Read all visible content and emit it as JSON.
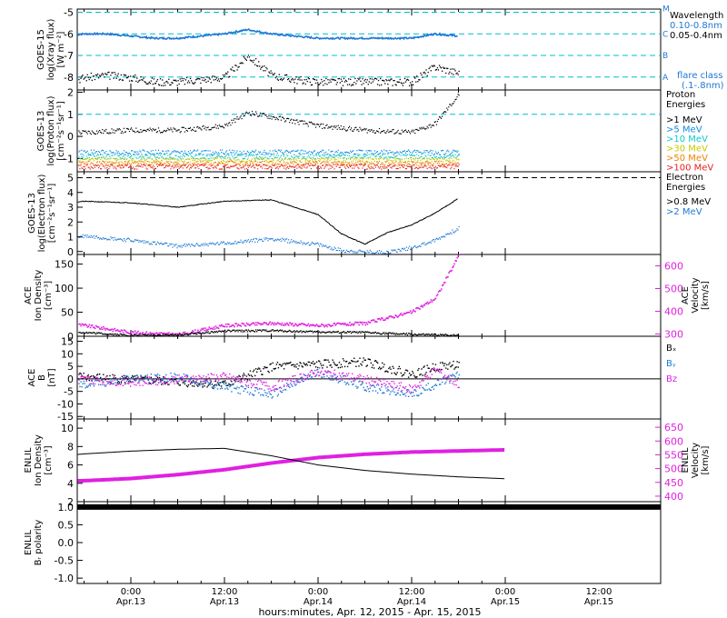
{
  "figure": {
    "xlabel": "hours:minutes, Apr. 12, 2015 - Apr. 15, 2015",
    "x_ticks": [
      {
        "time": "0:00",
        "date": "Apr.13"
      },
      {
        "time": "12:00",
        "date": "Apr.13"
      },
      {
        "time": "0:00",
        "date": "Apr.14"
      },
      {
        "time": "12:00",
        "date": "Apr.14"
      },
      {
        "time": "0:00",
        "date": "Apr.15"
      },
      {
        "time": "12:00",
        "date": "Apr.15"
      }
    ]
  },
  "colors": {
    "black": "#000000",
    "xray_blue": "#1f77d4",
    "cyan_ref": "#00bcd4",
    "magenta": "#e020e0",
    "p1": "#000000",
    "p5": "#0c8ce0",
    "p10": "#10c8c8",
    "p30": "#c8c800",
    "p50": "#f08000",
    "p100": "#e82020"
  },
  "panels": {
    "xray": {
      "ylabel": [
        "GOES-15",
        "log(Xray flux)",
        "[W m⁻²]"
      ],
      "yticks": [
        "-5",
        "-6",
        "-7",
        "-8"
      ],
      "flare_letters": [
        "M",
        "C",
        "B",
        "A"
      ],
      "legend_title": "Wavelength",
      "legend_items": [
        "0.10-0.8nm",
        "0.05-0.4nm"
      ],
      "flare_class_title": "flare class",
      "flare_class_range": "(.1-.8nm)"
    },
    "proton": {
      "ylabel": [
        "GOES-13",
        "log(Proton flux)",
        "[cm⁻²s⁻¹sr⁻¹]"
      ],
      "yticks": [
        "2",
        "1",
        "0",
        "-1"
      ],
      "legend_title": "Proton",
      "legend_title2": "Energies",
      "legend_items": [
        ">1 MeV",
        ">5 MeV",
        ">10 MeV",
        ">30 MeV",
        ">50 MeV",
        ">100 MeV"
      ]
    },
    "electron": {
      "ylabel": [
        "GOES-13",
        "log(Electron flux)",
        "[cm⁻²s⁻¹sr⁻¹]"
      ],
      "yticks": [
        "5",
        "4",
        "3",
        "2",
        "1",
        "0"
      ],
      "legend_title": "Electron",
      "legend_title2": "Energies",
      "legend_items": [
        ">0.8 MeV",
        ">2 MeV"
      ]
    },
    "ace_density": {
      "ylabel": [
        "ACE",
        "Ion Density",
        "[cm⁻³]"
      ],
      "yticks": [
        "150",
        "100",
        "50",
        "0"
      ],
      "ylabel_right": [
        "ACE",
        "Velocity",
        "[km/s]"
      ],
      "yticks_right": [
        "600",
        "500",
        "400",
        "300"
      ]
    },
    "ace_mag": {
      "ylabel": [
        "ACE",
        "B",
        "[nT]"
      ],
      "yticks": [
        "15",
        "10",
        "5",
        "0",
        "-5",
        "-10",
        "-15"
      ],
      "legend_items": [
        "Bₓ",
        "Bᵧ",
        "Bz"
      ]
    },
    "enlil": {
      "ylabel": [
        "ENLIL",
        "Ion Density",
        "[cm⁻³]"
      ],
      "yticks": [
        "10",
        "8",
        "6",
        "4",
        "2"
      ],
      "ylabel_right": [
        "ENLIL",
        "Velocity",
        "[km/s]"
      ],
      "yticks_right": [
        "650",
        "600",
        "550",
        "500",
        "450",
        "400"
      ]
    },
    "polarity": {
      "ylabel": [
        "ENLIL",
        "Bᵣ polarity"
      ],
      "yticks": [
        "1.0",
        "0.5",
        "0.0",
        "-0.5",
        "-1.0"
      ]
    }
  },
  "chart_data": {
    "type": "line",
    "x_unit": "hours since 2015-04-12 00:00",
    "xlim": [
      0,
      72
    ],
    "xlim_note": "Apr. 12, 2015 - Apr. 15, 2015",
    "xray": {
      "ylim": [
        -8.6,
        -4.85
      ],
      "hours": [
        0,
        3,
        6,
        9,
        12,
        15,
        18,
        21,
        24,
        27,
        30,
        33,
        36,
        39,
        42,
        45,
        48,
        51,
        54,
        57,
        60,
        63,
        66
      ],
      "long": [
        -7.7,
        -7.5,
        -7.0,
        -7.8,
        -8.2,
        -8.3,
        -8.0,
        -7.9,
        -8.0,
        -8.2,
        -8.2,
        -8.1,
        -8.0,
        -7.0,
        -7.9,
        -8.1,
        -8.2,
        -8.2,
        -8.2,
        -8.2,
        -8.2,
        -7.5,
        -7.8
      ],
      "short": [
        -6.1,
        -6.1,
        -5.5,
        -6.0,
        -6.2,
        -6.1,
        -6.0,
        -6.0,
        -6.1,
        -6.2,
        -6.2,
        -6.1,
        -6.0,
        -5.8,
        -6.0,
        -6.1,
        -6.2,
        -6.2,
        -6.2,
        -6.2,
        -6.2,
        -6.0,
        -6.1
      ]
    },
    "proton": {
      "ylim": [
        -1.6,
        2.1
      ],
      "hours": [
        0,
        6,
        12,
        18,
        24,
        30,
        36,
        39,
        42,
        48,
        54,
        60,
        63,
        66
      ],
      "series": [
        {
          "name": ">1 MeV",
          "values": [
            0.0,
            0.1,
            0.2,
            0.2,
            0.3,
            0.3,
            0.5,
            1.1,
            0.9,
            0.5,
            0.3,
            0.2,
            0.6,
            1.9
          ]
        },
        {
          "name": ">5 MeV",
          "values": [
            -0.7,
            -0.7,
            -0.7,
            -0.7,
            -0.7,
            -0.7,
            -0.7,
            -0.7,
            -0.7,
            -0.7,
            -0.7,
            -0.7,
            -0.7,
            -0.7
          ]
        },
        {
          "name": ">10 MeV",
          "values": [
            -0.9,
            -0.9,
            -0.9,
            -0.9,
            -0.9,
            -0.9,
            -0.9,
            -0.9,
            -0.9,
            -0.9,
            -0.9,
            -0.9,
            -0.9,
            -0.9
          ]
        },
        {
          "name": ">30 MeV",
          "values": [
            -1.05,
            -1.05,
            -1.05,
            -1.05,
            -1.05,
            -1.05,
            -1.05,
            -1.05,
            -1.05,
            -1.05,
            -1.05,
            -1.05,
            -1.05,
            -1.05
          ]
        },
        {
          "name": ">50 MeV",
          "values": [
            -1.2,
            -1.2,
            -1.2,
            -1.2,
            -1.2,
            -1.2,
            -1.2,
            -1.2,
            -1.2,
            -1.2,
            -1.2,
            -1.2,
            -1.2,
            -1.2
          ]
        },
        {
          "name": ">100 MeV",
          "values": [
            -1.35,
            -1.35,
            -1.35,
            -1.35,
            -1.35,
            -1.35,
            -1.35,
            -1.35,
            -1.35,
            -1.35,
            -1.35,
            -1.35,
            -1.35,
            -1.35
          ]
        }
      ],
      "reference_level": 1
    },
    "electron": {
      "ylim": [
        -0.2,
        5.4
      ],
      "hours": [
        0,
        6,
        12,
        18,
        24,
        30,
        36,
        42,
        48,
        51,
        54,
        57,
        60,
        63,
        66
      ],
      "series": [
        {
          "name": ">0.8 MeV",
          "values": [
            3.7,
            3.4,
            3.1,
            3.4,
            3.3,
            3.0,
            3.4,
            3.5,
            2.5,
            1.2,
            0.5,
            1.3,
            1.8,
            2.6,
            3.6
          ]
        },
        {
          "name": ">2 MeV",
          "values": [
            1.4,
            1.1,
            0.4,
            1.1,
            0.8,
            0.4,
            0.6,
            0.9,
            0.5,
            0.1,
            0.0,
            0.0,
            0.3,
            0.8,
            1.6
          ]
        }
      ],
      "reference_level": 5
    },
    "ace_density": {
      "ylim": [
        0,
        170
      ],
      "ylim_right": [
        290,
        650
      ],
      "hours": [
        0,
        6,
        12,
        18,
        24,
        30,
        36,
        42,
        48,
        54,
        60,
        63,
        66
      ],
      "density": [
        6,
        11,
        14,
        9,
        3,
        4,
        12,
        13,
        10,
        9,
        5,
        4,
        3
      ],
      "velocity": [
        350,
        355,
        360,
        340,
        310,
        300,
        340,
        350,
        340,
        350,
        400,
        460,
        650
      ]
    },
    "ace_mag": {
      "ylim": [
        -16,
        17
      ],
      "hours": [
        0,
        6,
        12,
        18,
        24,
        30,
        36,
        42,
        48,
        54,
        60,
        63,
        66
      ],
      "series": [
        {
          "name": "Bₓ",
          "values": [
            2,
            3,
            1,
            1,
            0,
            -1,
            -2,
            5,
            6,
            7,
            2,
            5,
            6
          ]
        },
        {
          "name": "Bᵧ",
          "values": [
            -3,
            -4,
            -2,
            -2,
            0,
            1,
            -3,
            -6,
            3,
            -3,
            -6,
            -2,
            2
          ]
        },
        {
          "name": "Bz",
          "values": [
            1,
            0,
            1,
            0,
            -1,
            0,
            1,
            -3,
            3,
            0,
            -4,
            4,
            -2
          ]
        }
      ]
    },
    "enlil": {
      "ylim": [
        2,
        11
      ],
      "ylim_right": [
        380,
        680
      ],
      "hours": [
        0,
        6,
        12,
        18,
        24,
        30,
        36,
        42,
        48,
        54,
        60,
        66,
        72
      ],
      "density": [
        5.9,
        6.2,
        6.7,
        7.2,
        7.5,
        7.7,
        7.8,
        7.0,
        6.0,
        5.4,
        5.0,
        4.7,
        4.5
      ],
      "velocity": [
        460,
        456,
        454,
        456,
        464,
        478,
        496,
        520,
        540,
        552,
        560,
        564,
        568
      ]
    },
    "polarity": {
      "ylim": [
        -1.15,
        1.15
      ],
      "hours": [
        0,
        72
      ],
      "values": [
        1,
        1
      ]
    }
  }
}
